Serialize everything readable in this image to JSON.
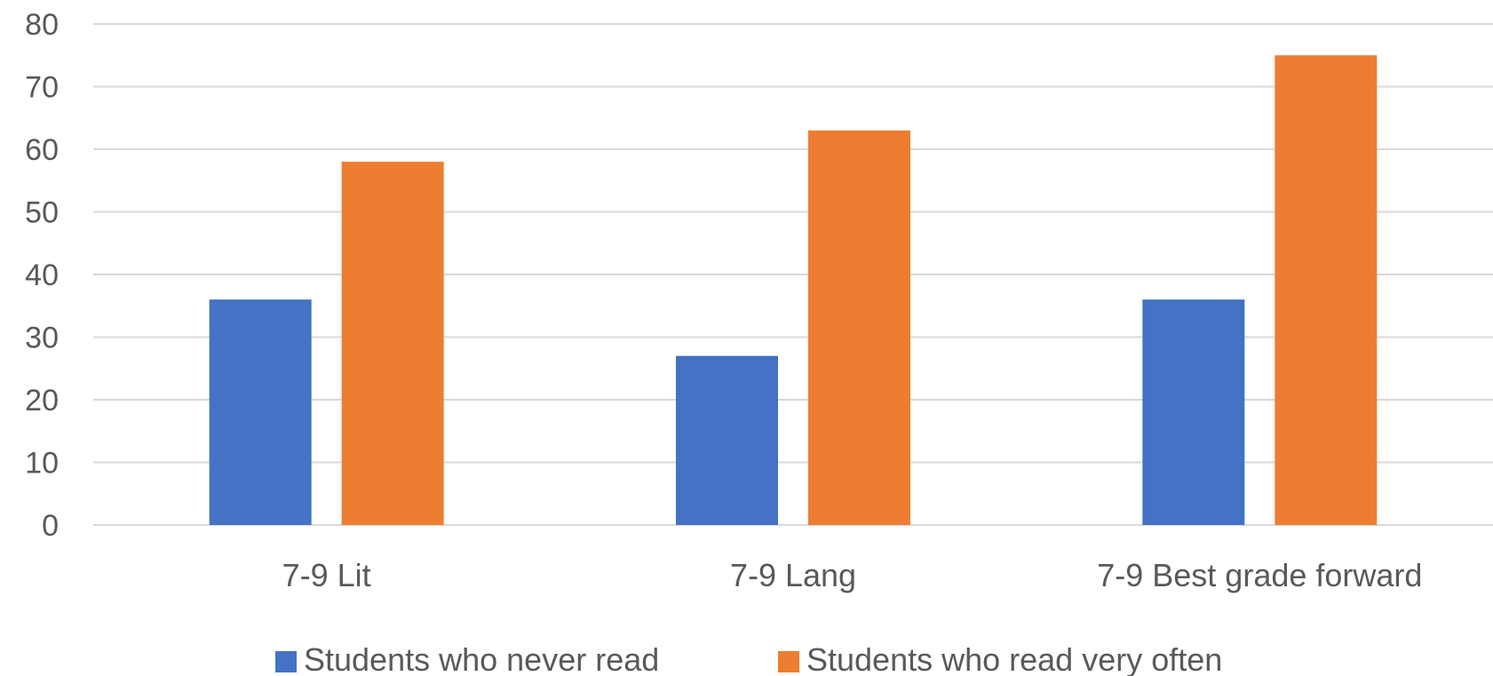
{
  "chart_data": {
    "type": "bar",
    "categories": [
      "7-9 Lit",
      "7-9 Lang",
      "7-9 Best grade forward"
    ],
    "series": [
      {
        "name": "Students who never read",
        "values": [
          36,
          27,
          36
        ],
        "color": "#4472C4"
      },
      {
        "name": "Students who read very often",
        "values": [
          58,
          63,
          75
        ],
        "color": "#ED7D31"
      }
    ],
    "ylim": [
      0,
      80
    ],
    "yticks": [
      0,
      10,
      20,
      30,
      40,
      50,
      60,
      70,
      80
    ],
    "grid": true,
    "legend_position": "bottom",
    "gridline_color": "#D9D9D9"
  }
}
